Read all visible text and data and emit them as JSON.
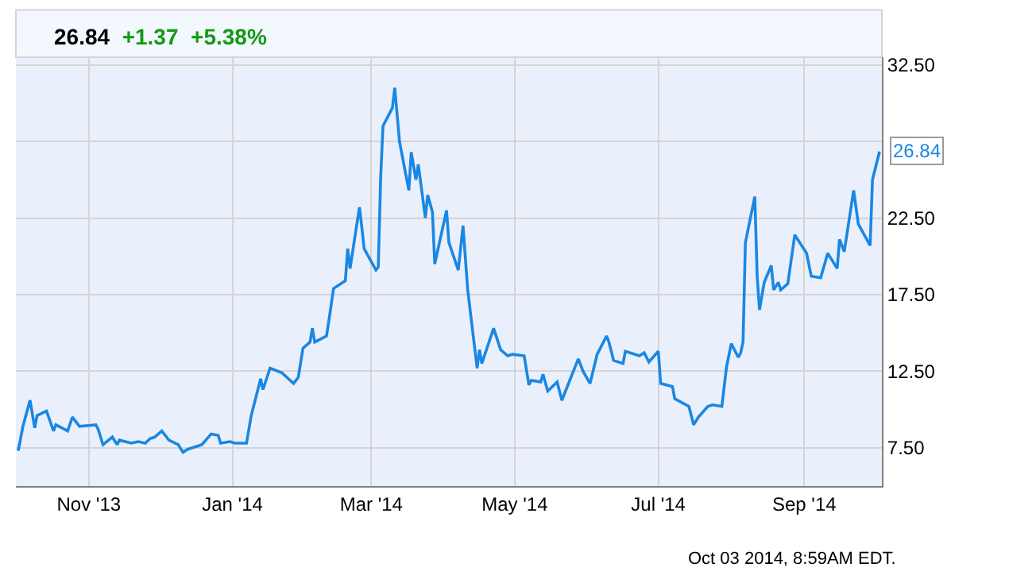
{
  "chart_data": {
    "type": "line",
    "title": "26.84",
    "subtitle": "+1.37  +5.38%",
    "x": [
      "2013-10-02",
      "2013-10-04",
      "2013-10-07",
      "2013-10-09",
      "2013-10-10",
      "2013-10-14",
      "2013-10-17",
      "2013-10-18",
      "2013-10-23",
      "2013-10-25",
      "2013-10-28",
      "2013-11-04",
      "2013-11-05",
      "2013-11-07",
      "2013-11-11",
      "2013-11-13",
      "2013-11-14",
      "2013-11-19",
      "2013-11-22",
      "2013-11-25",
      "2013-11-27",
      "2013-11-29",
      "2013-12-02",
      "2013-12-05",
      "2013-12-09",
      "2013-12-11",
      "2013-12-13",
      "2013-12-19",
      "2013-12-23",
      "2013-12-26",
      "2013-12-27",
      "2013-12-31",
      "2014-01-02",
      "2014-01-07",
      "2014-01-09",
      "2014-01-13",
      "2014-01-14",
      "2014-01-17",
      "2014-01-22",
      "2014-01-27",
      "2014-01-29",
      "2014-01-31",
      "2014-02-03",
      "2014-02-04",
      "2014-02-05",
      "2014-02-10",
      "2014-02-11",
      "2014-02-13",
      "2014-02-18",
      "2014-02-19",
      "2014-02-20",
      "2014-02-24",
      "2014-02-25",
      "2014-02-26",
      "2014-03-03",
      "2014-03-04",
      "2014-03-05",
      "2014-03-06",
      "2014-03-10",
      "2014-03-11",
      "2014-03-13",
      "2014-03-17",
      "2014-03-18",
      "2014-03-20",
      "2014-03-21",
      "2014-03-24",
      "2014-03-25",
      "2014-03-27",
      "2014-03-28",
      "2014-04-02",
      "2014-04-03",
      "2014-04-07",
      "2014-04-09",
      "2014-04-11",
      "2014-04-15",
      "2014-04-16",
      "2014-04-17",
      "2014-04-22",
      "2014-04-25",
      "2014-04-28",
      "2014-04-30",
      "2014-05-05",
      "2014-05-07",
      "2014-05-08",
      "2014-05-12",
      "2014-05-13",
      "2014-05-15",
      "2014-05-19",
      "2014-05-21",
      "2014-05-28",
      "2014-05-30",
      "2014-06-02",
      "2014-06-05",
      "2014-06-09",
      "2014-06-10",
      "2014-06-12",
      "2014-06-16",
      "2014-06-17",
      "2014-06-23",
      "2014-06-25",
      "2014-06-27",
      "2014-07-01",
      "2014-07-02",
      "2014-07-07",
      "2014-07-08",
      "2014-07-14",
      "2014-07-16",
      "2014-07-18",
      "2014-07-22",
      "2014-07-24",
      "2014-07-28",
      "2014-07-30",
      "2014-08-01",
      "2014-08-04",
      "2014-08-05",
      "2014-08-06",
      "2014-08-07",
      "2014-08-11",
      "2014-08-12",
      "2014-08-13",
      "2014-08-15",
      "2014-08-18",
      "2014-08-19",
      "2014-08-21",
      "2014-08-22",
      "2014-08-25",
      "2014-08-28",
      "2014-09-02",
      "2014-09-04",
      "2014-09-08",
      "2014-09-11",
      "2014-09-15",
      "2014-09-16",
      "2014-09-18",
      "2014-09-22",
      "2014-09-24",
      "2014-09-29",
      "2014-09-30",
      "2014-10-03"
    ],
    "series": [
      {
        "color": "#1a87e3",
        "values": [
          7.3,
          8.9,
          10.6,
          8.8,
          9.6,
          9.9,
          8.6,
          9.0,
          8.6,
          9.5,
          8.9,
          9.0,
          8.7,
          7.7,
          8.2,
          7.7,
          8.0,
          7.8,
          7.9,
          7.8,
          8.1,
          8.2,
          8.6,
          8.0,
          7.7,
          7.2,
          7.4,
          7.7,
          8.4,
          8.3,
          7.8,
          7.9,
          7.8,
          7.8,
          9.6,
          12.0,
          11.3,
          12.7,
          12.4,
          11.7,
          12.1,
          14.0,
          14.4,
          15.3,
          14.4,
          14.8,
          15.8,
          17.9,
          18.4,
          20.5,
          19.2,
          23.2,
          21.9,
          20.5,
          19.1,
          19.3,
          25.1,
          28.5,
          29.7,
          31.0,
          27.5,
          24.3,
          26.8,
          25.0,
          26.0,
          22.5,
          24.0,
          22.9,
          19.5,
          23.0,
          20.9,
          19.1,
          22.0,
          17.8,
          12.7,
          13.9,
          13.0,
          15.3,
          13.9,
          13.5,
          13.6,
          13.5,
          11.6,
          11.9,
          11.8,
          12.3,
          11.2,
          11.8,
          10.6,
          13.3,
          12.5,
          11.7,
          13.6,
          14.8,
          14.4,
          13.2,
          13.0,
          13.8,
          13.5,
          13.7,
          13.1,
          13.8,
          11.7,
          11.5,
          10.7,
          10.2,
          9.0,
          9.5,
          10.2,
          10.3,
          10.2,
          12.8,
          14.3,
          13.4,
          13.7,
          14.4,
          20.9,
          23.9,
          18.7,
          16.5,
          18.3,
          19.4,
          17.8,
          18.3,
          17.8,
          18.2,
          21.4,
          20.2,
          18.7,
          18.6,
          20.2,
          19.2,
          21.1,
          20.3,
          24.3,
          22.1,
          20.7,
          25.0,
          26.84
        ]
      }
    ],
    "xlim": [
      "2013-10-01",
      "2014-10-04"
    ],
    "xticks": [
      {
        "value": "2013-11-01",
        "label": "Nov '13"
      },
      {
        "value": "2014-01-01",
        "label": "Jan '14"
      },
      {
        "value": "2014-03-01",
        "label": "Mar '14"
      },
      {
        "value": "2014-05-01",
        "label": "May '14"
      },
      {
        "value": "2014-07-01",
        "label": "Jul '14"
      },
      {
        "value": "2014-09-01",
        "label": "Sep '14"
      }
    ],
    "ylim": [
      5,
      33
    ],
    "yticks": [
      {
        "value": 7.5,
        "label": "7.50"
      },
      {
        "value": 12.5,
        "label": "12.50"
      },
      {
        "value": 17.5,
        "label": "17.50"
      },
      {
        "value": 22.5,
        "label": "22.50"
      },
      {
        "value": 27.5,
        "label": null
      },
      {
        "value": 32.5,
        "label": "32.50"
      }
    ],
    "grid": true,
    "marker": "none",
    "line_style": "solid",
    "annotations": [
      {
        "text": "26.84",
        "x": "2014-10-03",
        "y": 26.84
      },
      "Oct 03 2014, 8:59AM EDT."
    ]
  }
}
